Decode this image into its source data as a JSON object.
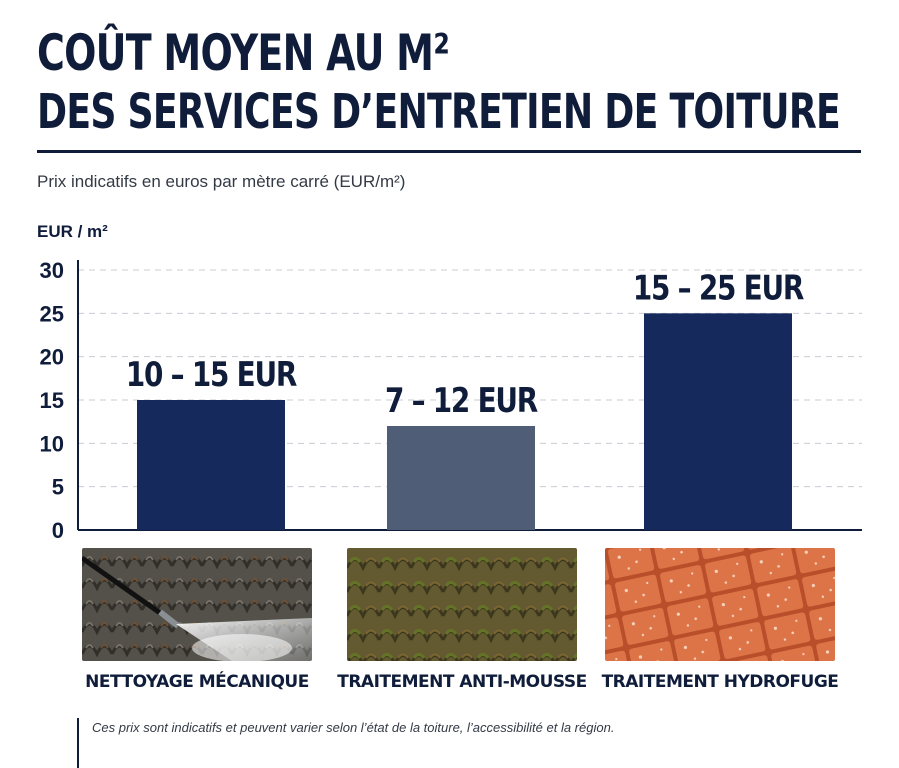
{
  "header": {
    "title_line1": "COÛT MOYEN AU M²",
    "title_line2": "DES SERVICES D’ENTRETIEN DE TOITURE",
    "subtitle": "Prix indicatifs en euros par mètre carré (EUR/m²)"
  },
  "chart_data": {
    "type": "bar",
    "ylabel": "EUR / m²",
    "ylim": [
      0,
      30
    ],
    "yticks": [
      0,
      5,
      10,
      15,
      20,
      25,
      30
    ],
    "grid": true,
    "categories": [
      "NETTOYAGE MÉCANIQUE",
      "TRAITEMENT ANTI-MOUSSE",
      "TRAITEMENT HYDROFUGE"
    ],
    "values": [
      15,
      12,
      25
    ],
    "data_labels": [
      "10 – 15 EUR",
      "7 – 12 EUR",
      "15 – 25 EUR"
    ],
    "colors": [
      "#15295c",
      "#4f5d77",
      "#15295c"
    ]
  },
  "images": [
    {
      "name": "nettoyage-photo",
      "description": "Photo: pressure washer cleaning dark roof tiles"
    },
    {
      "name": "anti-mousse-photo",
      "description": "Photo: moss-covered roof tiles"
    },
    {
      "name": "hydrofuge-photo",
      "description": "Photo: orange roof tiles with water droplets"
    }
  ],
  "footer": {
    "note": "Ces prix sont indicatifs et peuvent varier selon l’état de la toiture, l’accessibilité et la région."
  }
}
